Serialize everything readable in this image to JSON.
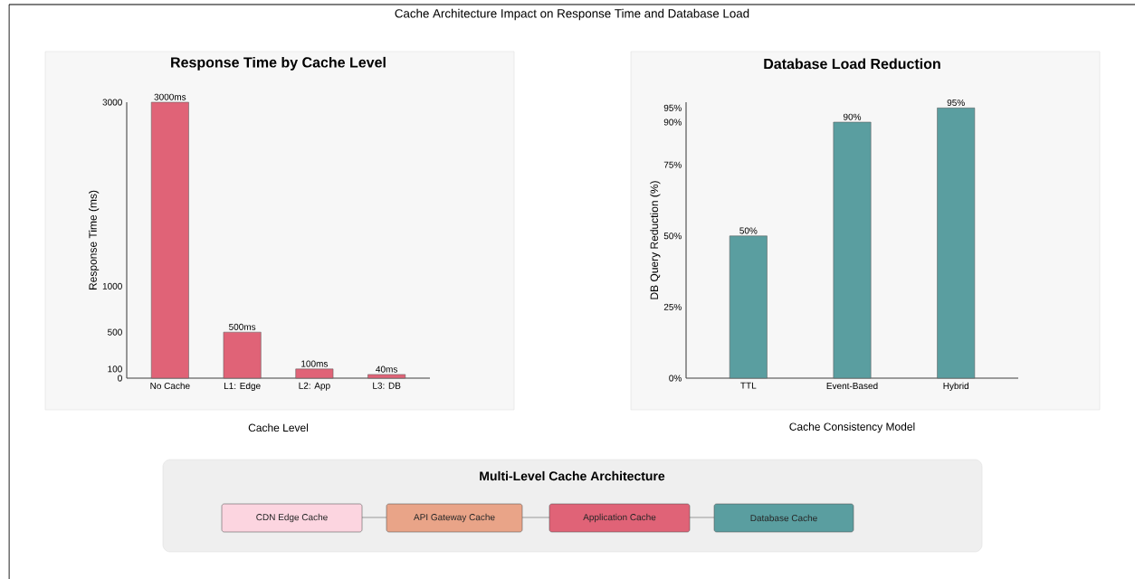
{
  "chart_data": [
    {
      "type": "bar",
      "title": "Response Time by Cache Level",
      "xlabel": "Cache Level",
      "ylabel": "Response Time (ms)",
      "categories": [
        "No Cache",
        "L1: Edge",
        "L2: App",
        "L3: DB"
      ],
      "values": [
        3000,
        500,
        100,
        40
      ],
      "value_labels": [
        "3000ms",
        "500ms",
        "100ms",
        "40ms"
      ],
      "color": "#e06377",
      "ylim": [
        0,
        3000
      ],
      "yticks": [
        0,
        100,
        500,
        1000,
        3000
      ],
      "annotations": [
        "Cache Architecture Impact on Response Time and Database Load"
      ]
    },
    {
      "type": "bar",
      "title": "Database Load Reduction",
      "xlabel": "Cache Consistency Model",
      "ylabel": "DB Query Reduction (%)",
      "categories": [
        "TTL",
        "Event-Based",
        "Hybrid"
      ],
      "values": [
        50,
        90,
        95
      ],
      "value_labels": [
        "50%",
        "90%",
        "95%"
      ],
      "color": "#5a9ea0",
      "ylim": [
        0,
        97
      ],
      "yticks": [
        {
          "value": 0,
          "label": "0%"
        },
        {
          "value": 25,
          "label": "25%"
        },
        {
          "value": 50,
          "label": "50%"
        },
        {
          "value": 75,
          "label": "75%"
        },
        {
          "value": 90,
          "label": "90%"
        },
        {
          "value": 95,
          "label": "95%"
        }
      ]
    },
    {
      "type": "other",
      "title": "Multi-Level Cache Architecture",
      "categories": [
        "CDN Edge Cache",
        "API Gateway Cache",
        "Application Cache",
        "Database Cache"
      ],
      "colors": [
        "#fcd5e0",
        "#e9a488",
        "#e06377",
        "#5a9ea0"
      ]
    }
  ]
}
